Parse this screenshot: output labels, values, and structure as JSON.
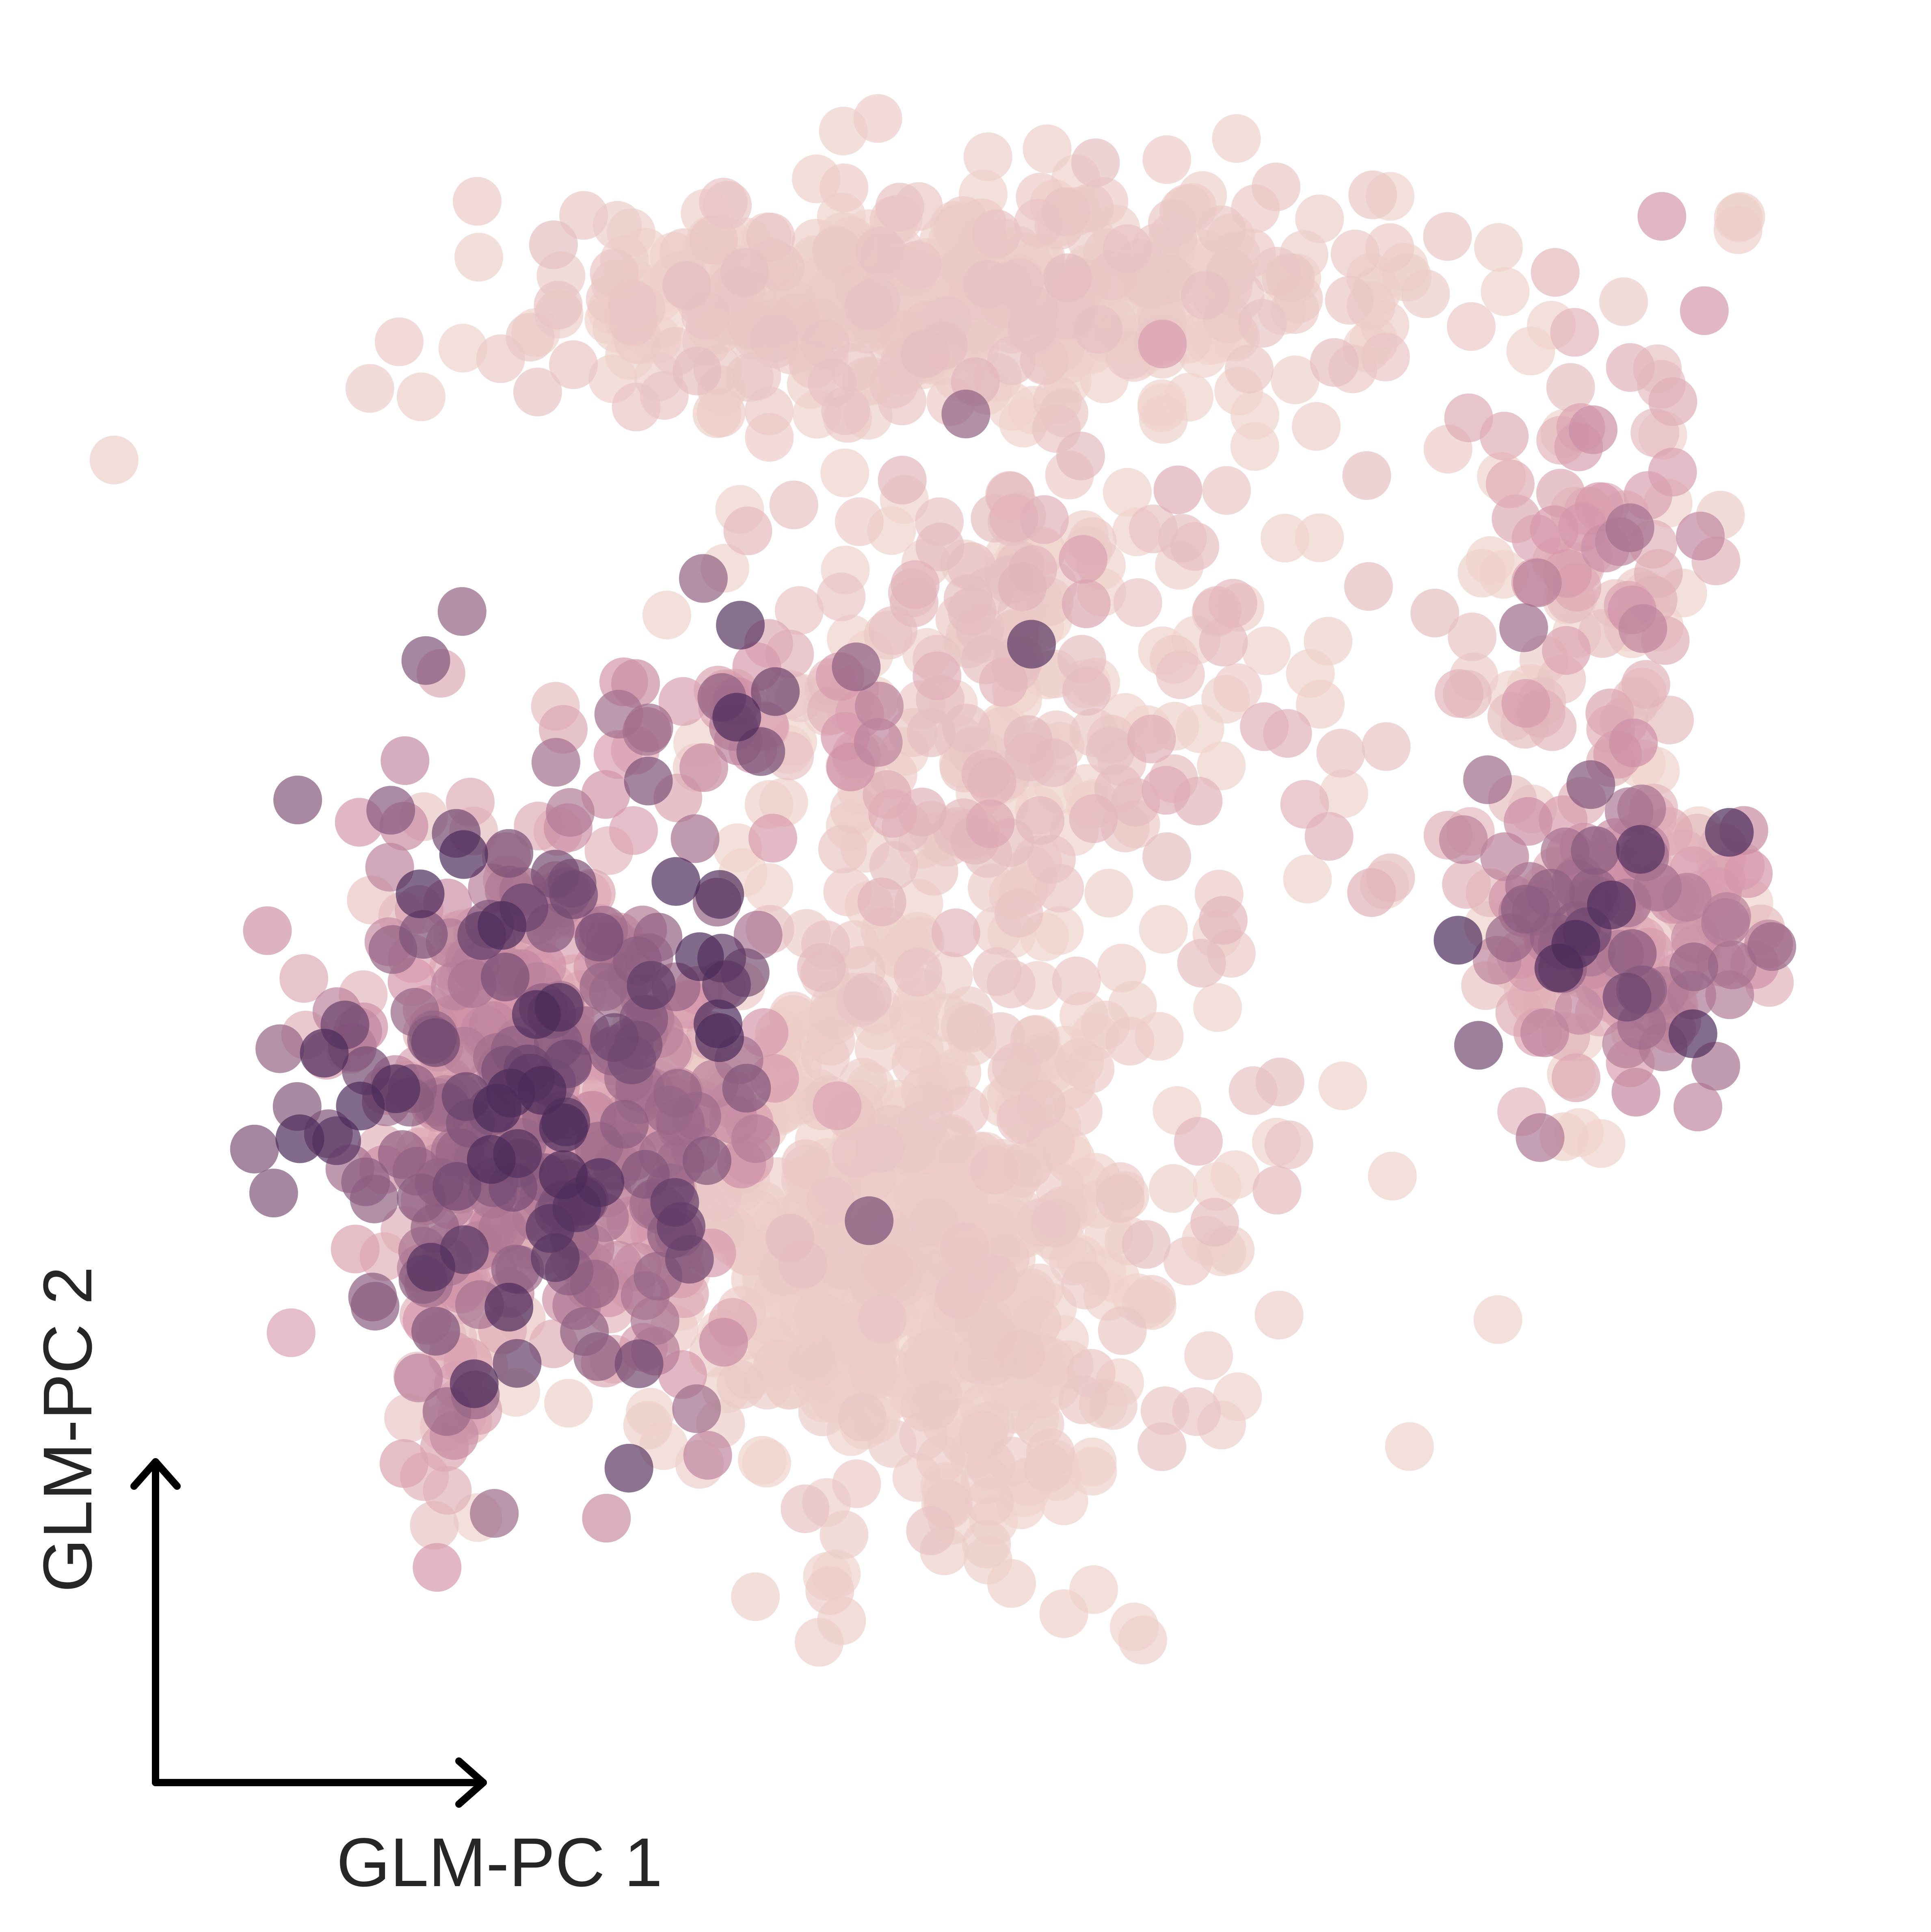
{
  "chart_data": {
    "type": "scatter",
    "title": "",
    "xlabel": "GLM-PC 1",
    "ylabel": "GLM-PC 2",
    "xlim": [
      0,
      100
    ],
    "ylim": [
      0,
      100
    ],
    "grid": false,
    "legend": "none",
    "ticks": "none",
    "colormap": {
      "low": "#efd3cc",
      "mid": "#d596ab",
      "high": "#4b2b5a",
      "description": "light pink (low) to dark purple (high)"
    },
    "points_note": "value 0-1 = color intensity",
    "clusters": [
      {
        "name": "",
        "cx": 21,
        "cy": 40,
        "sx": 6.5,
        "sy": 9,
        "n": 520,
        "vmean": 0.55,
        "vsd": 0.25
      },
      {
        "name": "",
        "cx": 33,
        "cy": 63,
        "sx": 5,
        "sy": 2,
        "n": 40,
        "vmean": 0.5,
        "vsd": 0.25
      },
      {
        "name": "",
        "cx": 45,
        "cy": 88,
        "sx": 13,
        "sy": 3.5,
        "n": 420,
        "vmean": 0.05,
        "vsd": 0.05
      },
      {
        "name": "",
        "cx": 47,
        "cy": 62,
        "sx": 9,
        "sy": 12,
        "n": 260,
        "vmean": 0.08,
        "vsd": 0.12
      },
      {
        "name": "",
        "cx": 43,
        "cy": 30,
        "sx": 7,
        "sy": 9,
        "n": 560,
        "vmean": 0.03,
        "vsd": 0.04
      },
      {
        "name": "",
        "cx": 86,
        "cy": 50,
        "sx": 4.5,
        "sy": 4,
        "n": 180,
        "vmean": 0.45,
        "vsd": 0.25
      },
      {
        "name": "",
        "cx": 84,
        "cy": 72,
        "sx": 3.5,
        "sy": 7,
        "n": 90,
        "vmean": 0.2,
        "vsd": 0.2
      },
      {
        "name": "",
        "cx": 70,
        "cy": 52,
        "sx": 9,
        "sy": 14,
        "n": 60,
        "vmean": 0.08,
        "vsd": 0.12
      },
      {
        "name": "",
        "cx": 15,
        "cy": 22,
        "sx": 1.5,
        "sy": 4,
        "n": 30,
        "vmean": 0.3,
        "vsd": 0.2
      },
      {
        "name": "",
        "cx": 94,
        "cy": 93,
        "sx": 0.5,
        "sy": 0.6,
        "n": 3,
        "vmean": 0.02,
        "vsd": 0.01
      }
    ],
    "highlighted_points": [
      {
        "x": 50,
        "y": 67,
        "v": 0.95
      },
      {
        "x": 46,
        "y": 81,
        "v": 0.75
      },
      {
        "x": 30,
        "y": 71,
        "v": 0.75
      },
      {
        "x": 81,
        "y": 37,
        "v": 0.65
      },
      {
        "x": 76,
        "y": 49,
        "v": 1.0
      },
      {
        "x": 80,
        "y": 68,
        "v": 0.7
      }
    ]
  }
}
